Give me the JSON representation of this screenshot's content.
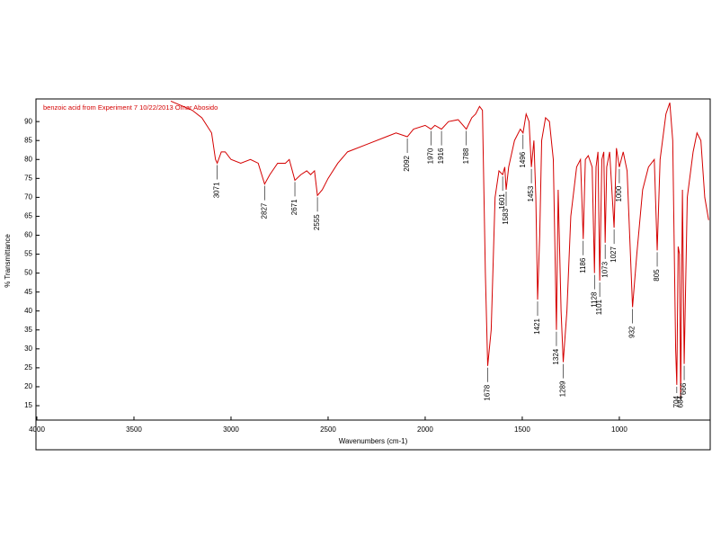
{
  "chart_data": {
    "type": "line",
    "title": "benzoic acid from Experiment 7 10/22/2013 Omar Abosido",
    "xlabel": "Wavenumbers (cm-1)",
    "ylabel": "% Transmittance",
    "color": "#d40000",
    "xlim": [
      4000,
      532
    ],
    "ylim": [
      11.2,
      95.5
    ],
    "xticks": [
      4000,
      3500,
      3000,
      2500,
      2000,
      1500,
      1000
    ],
    "yticks": [
      15,
      20,
      25,
      30,
      35,
      40,
      45,
      50,
      55,
      60,
      65,
      70,
      75,
      80,
      85,
      90
    ],
    "x": [
      3310,
      3200,
      3150,
      3100,
      3080,
      3071,
      3050,
      3030,
      3000,
      2950,
      2900,
      2860,
      2827,
      2800,
      2760,
      2720,
      2700,
      2671,
      2640,
      2610,
      2590,
      2570,
      2555,
      2530,
      2500,
      2450,
      2400,
      2300,
      2200,
      2150,
      2092,
      2060,
      2000,
      1970,
      1950,
      1916,
      1880,
      1830,
      1788,
      1760,
      1740,
      1720,
      1705,
      1690,
      1678,
      1660,
      1640,
      1620,
      1601,
      1590,
      1583,
      1570,
      1540,
      1510,
      1496,
      1480,
      1465,
      1453,
      1440,
      1430,
      1421,
      1410,
      1400,
      1380,
      1360,
      1340,
      1324,
      1315,
      1300,
      1289,
      1270,
      1250,
      1220,
      1200,
      1186,
      1175,
      1160,
      1140,
      1128,
      1120,
      1110,
      1101,
      1090,
      1080,
      1073,
      1065,
      1050,
      1027,
      1015,
      1000,
      980,
      960,
      932,
      910,
      880,
      850,
      820,
      805,
      790,
      760,
      740,
      725,
      710,
      704,
      697,
      690,
      684,
      675,
      666,
      650,
      620,
      600,
      580,
      560,
      540
    ],
    "values": [
      95.4,
      93,
      91,
      87,
      80,
      79,
      82,
      82,
      80,
      79,
      80,
      79,
      73.5,
      76,
      79,
      79,
      80,
      74.5,
      76,
      77,
      76,
      77,
      70.5,
      72,
      75,
      79,
      82,
      84,
      86,
      87,
      86,
      88,
      89,
      88,
      89,
      88,
      90,
      90.5,
      88,
      91,
      92,
      94,
      93,
      50,
      25.5,
      35,
      70,
      77,
      76,
      78,
      72,
      78,
      85,
      88,
      87,
      92,
      90,
      78,
      85,
      70,
      43,
      60,
      85,
      91,
      90,
      80,
      35,
      72,
      40,
      26.5,
      40,
      65,
      78,
      80,
      59,
      80,
      81,
      78,
      50,
      78,
      82,
      48,
      80,
      82,
      58,
      78,
      82,
      62,
      83,
      78,
      82,
      77,
      41,
      55,
      72,
      78,
      80,
      56,
      80,
      92,
      95,
      85,
      30,
      20.5,
      57,
      55,
      17,
      72,
      26,
      70,
      82,
      87,
      85,
      70,
      64
    ],
    "annotations": [
      3071,
      2827,
      2671,
      2555,
      2092,
      1970,
      1916,
      1788,
      1678,
      1601,
      1583,
      1496,
      1453,
      1421,
      1324,
      1289,
      1186,
      1128,
      1101,
      1073,
      1027,
      1000,
      932,
      805,
      704,
      684,
      666
    ]
  }
}
